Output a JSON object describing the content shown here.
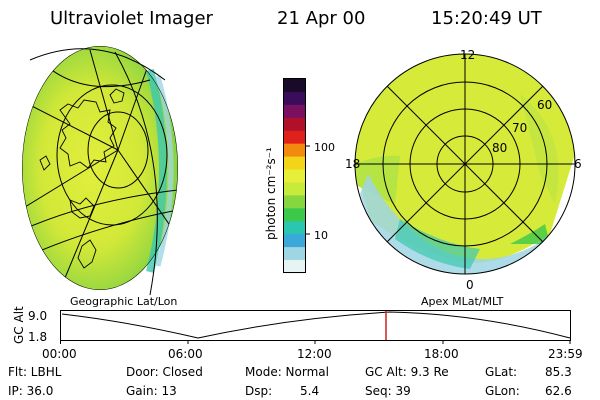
{
  "header": {
    "instrument": "Ultraviolet Imager",
    "date": "21 Apr 00",
    "time": "15:20:49 UT"
  },
  "colorbar": {
    "label": "photon cm⁻²s⁻¹",
    "ticks": [
      "100",
      "10"
    ],
    "colors": [
      "#1a0a2a",
      "#3a0d5a",
      "#7a1060",
      "#b0102a",
      "#e0201a",
      "#f28a10",
      "#f3d418",
      "#e8ef3a",
      "#c8ea3a",
      "#86d640",
      "#3cc84a",
      "#2bc6b0",
      "#3aa8d8",
      "#9fd6e4",
      "#e8f4f4"
    ]
  },
  "left_panel": {
    "caption": "Geographic Lat/Lon"
  },
  "right_panel": {
    "caption": "Apex MLat/MLT",
    "mlt_labels": [
      "12",
      "18",
      "6",
      "0"
    ],
    "mlat_labels": [
      "60",
      "70",
      "80"
    ]
  },
  "altitude_plot": {
    "ylabel": "GC Alt",
    "ymax_label": "9.0",
    "ymin_label": "1.8",
    "xticks": [
      "00:00",
      "06:00",
      "12:00",
      "18:00",
      "23:59"
    ],
    "marker_color": "#d0201a"
  },
  "info": {
    "filter": "Flt: LBHL",
    "ip": "IP: 36.0",
    "door": "Door: Closed",
    "gain": "Gain: 13",
    "mode": "Mode: Normal",
    "dsp_label": "Dsp:",
    "dsp_value": "5.4",
    "gc_alt": "GC Alt: 9.3 Re",
    "seq": "Seq: 39",
    "glat_label": "GLat:",
    "glat_value": "85.3",
    "glon_label": "GLon:",
    "glon_value": "62.6"
  }
}
